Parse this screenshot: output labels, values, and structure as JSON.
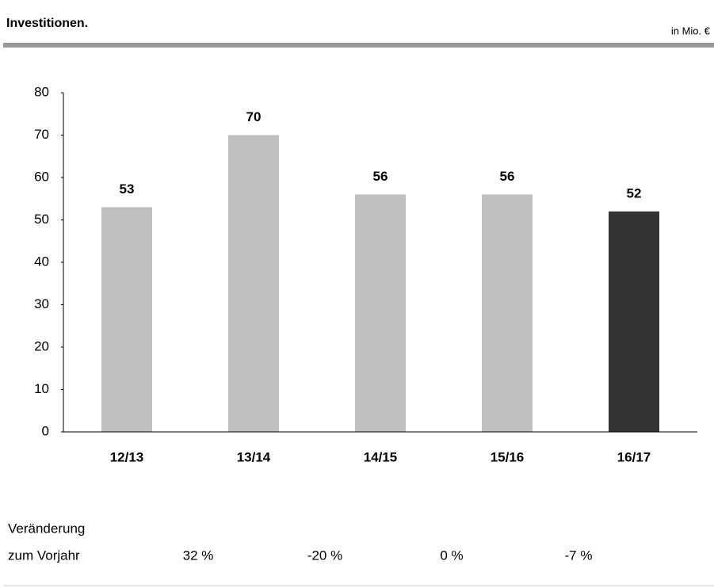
{
  "chart_data": {
    "type": "bar",
    "title": "Investitionen.",
    "unit": "in Mio. €",
    "categories": [
      "12/13",
      "13/14",
      "14/15",
      "15/16",
      "16/17"
    ],
    "values": [
      53,
      70,
      56,
      56,
      52
    ],
    "colors": [
      "#bfbfbf",
      "#bfbfbf",
      "#bfbfbf",
      "#bfbfbf",
      "#333333"
    ],
    "ylim": [
      0,
      80
    ],
    "yticks": [
      0,
      10,
      20,
      30,
      40,
      50,
      60,
      70,
      80
    ],
    "grid": false,
    "change_label": [
      "Veränderung",
      "zum Vorjahr"
    ],
    "changes": [
      "32 %",
      "-20 %",
      "0 %",
      "-7 %"
    ]
  }
}
